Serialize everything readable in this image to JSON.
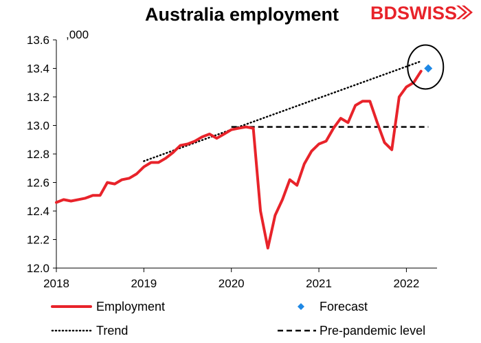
{
  "chart_data": {
    "type": "line",
    "title": "Australia employment",
    "unit_label": ",000",
    "xlabel": "",
    "ylabel": "",
    "xlim": [
      2018,
      2022.35
    ],
    "ylim": [
      12.0,
      13.6
    ],
    "y_ticks": [
      "12.0",
      "12.2",
      "12.4",
      "12.6",
      "12.8",
      "13.0",
      "13.2",
      "13.4",
      "13.6"
    ],
    "x_ticks": [
      "2018",
      "2019",
      "2020",
      "2021",
      "2022"
    ],
    "grid": false,
    "legend_position": "bottom",
    "series": [
      {
        "name": "Employment",
        "style": "solid-thick",
        "color": "#e8232a",
        "points": [
          [
            2018.0,
            12.46
          ],
          [
            2018.083,
            12.48
          ],
          [
            2018.167,
            12.47
          ],
          [
            2018.25,
            12.48
          ],
          [
            2018.333,
            12.49
          ],
          [
            2018.417,
            12.51
          ],
          [
            2018.5,
            12.51
          ],
          [
            2018.583,
            12.6
          ],
          [
            2018.667,
            12.59
          ],
          [
            2018.75,
            12.62
          ],
          [
            2018.833,
            12.63
          ],
          [
            2018.917,
            12.66
          ],
          [
            2019.0,
            12.71
          ],
          [
            2019.083,
            12.74
          ],
          [
            2019.167,
            12.74
          ],
          [
            2019.25,
            12.77
          ],
          [
            2019.333,
            12.81
          ],
          [
            2019.417,
            12.86
          ],
          [
            2019.5,
            12.87
          ],
          [
            2019.583,
            12.89
          ],
          [
            2019.667,
            12.92
          ],
          [
            2019.75,
            12.94
          ],
          [
            2019.833,
            12.91
          ],
          [
            2019.917,
            12.94
          ],
          [
            2020.0,
            12.97
          ],
          [
            2020.083,
            12.98
          ],
          [
            2020.167,
            12.99
          ],
          [
            2020.25,
            12.98
          ],
          [
            2020.333,
            12.4
          ],
          [
            2020.417,
            12.14
          ],
          [
            2020.5,
            12.37
          ],
          [
            2020.583,
            12.48
          ],
          [
            2020.667,
            12.62
          ],
          [
            2020.75,
            12.58
          ],
          [
            2020.833,
            12.73
          ],
          [
            2020.917,
            12.82
          ],
          [
            2021.0,
            12.87
          ],
          [
            2021.083,
            12.89
          ],
          [
            2021.167,
            12.98
          ],
          [
            2021.25,
            13.05
          ],
          [
            2021.333,
            13.02
          ],
          [
            2021.417,
            13.14
          ],
          [
            2021.5,
            13.17
          ],
          [
            2021.583,
            13.17
          ],
          [
            2021.667,
            13.02
          ],
          [
            2021.75,
            12.88
          ],
          [
            2021.833,
            12.83
          ],
          [
            2021.917,
            13.2
          ],
          [
            2022.0,
            13.27
          ],
          [
            2022.083,
            13.3
          ],
          [
            2022.167,
            13.38
          ]
        ]
      },
      {
        "name": "Forecast",
        "style": "marker-diamond",
        "color": "#1e88e5",
        "points": [
          [
            2022.25,
            13.4
          ]
        ]
      },
      {
        "name": "Trend",
        "style": "dotted",
        "color": "#000000",
        "points": [
          [
            2019.0,
            12.75
          ],
          [
            2022.167,
            13.45
          ]
        ]
      },
      {
        "name": "Pre-pandemic level",
        "style": "dashed",
        "color": "#000000",
        "points": [
          [
            2020.0,
            12.99
          ],
          [
            2022.25,
            12.99
          ]
        ]
      }
    ],
    "annotation": {
      "type": "circle",
      "note": "forecast point circled",
      "x": 2022.25,
      "y": 13.4
    }
  },
  "branding": {
    "logo_part1": "BD",
    "logo_part2": "SWISS",
    "logo_color": "#e8232a"
  }
}
